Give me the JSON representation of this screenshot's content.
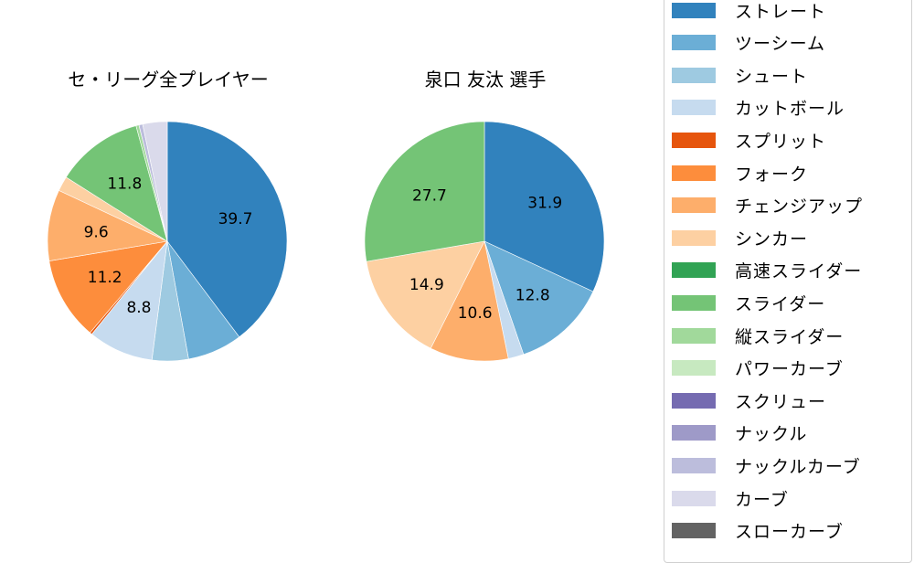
{
  "chart_data": [
    {
      "type": "pie",
      "title": "セ・リーグ全プレイヤー",
      "start_angle": 90,
      "direction": "clockwise",
      "slices": [
        {
          "label": "ストレート",
          "value": 39.7,
          "color": "#3182bd",
          "show_label": true
        },
        {
          "label": "ツーシーム",
          "value": 7.4,
          "color": "#6baed6",
          "show_label": false
        },
        {
          "label": "シュート",
          "value": 4.9,
          "color": "#9ecae1",
          "show_label": false
        },
        {
          "label": "カットボール",
          "value": 8.8,
          "color": "#c6dbef",
          "show_label": true
        },
        {
          "label": "スプリット",
          "value": 0.3,
          "color": "#e6550d",
          "show_label": false
        },
        {
          "label": "フォーク",
          "value": 11.2,
          "color": "#fd8d3c",
          "show_label": true
        },
        {
          "label": "チェンジアップ",
          "value": 9.6,
          "color": "#fdae6b",
          "show_label": true
        },
        {
          "label": "シンカー",
          "value": 2.0,
          "color": "#fdd0a2",
          "show_label": false
        },
        {
          "label": "スライダー",
          "value": 11.8,
          "color": "#74c476",
          "show_label": true
        },
        {
          "label": "縦スライダー",
          "value": 0.4,
          "color": "#a1d99b",
          "show_label": false
        },
        {
          "label": "ナックルカーブ",
          "value": 0.5,
          "color": "#bcbddc",
          "show_label": false
        },
        {
          "label": "カーブ",
          "value": 3.3,
          "color": "#dadaeb",
          "show_label": false
        }
      ]
    },
    {
      "type": "pie",
      "title": "泉口 友汰  選手",
      "start_angle": 90,
      "direction": "clockwise",
      "slices": [
        {
          "label": "ストレート",
          "value": 31.9,
          "color": "#3182bd",
          "show_label": true
        },
        {
          "label": "ツーシーム",
          "value": 12.8,
          "color": "#6baed6",
          "show_label": true
        },
        {
          "label": "カットボール",
          "value": 2.1,
          "color": "#c6dbef",
          "show_label": false
        },
        {
          "label": "チェンジアップ",
          "value": 10.6,
          "color": "#fdae6b",
          "show_label": true
        },
        {
          "label": "シンカー",
          "value": 14.9,
          "color": "#fdd0a2",
          "show_label": true
        },
        {
          "label": "スライダー",
          "value": 27.7,
          "color": "#74c476",
          "show_label": true
        }
      ]
    }
  ],
  "titles": {
    "left": "セ・リーグ全プレイヤー",
    "right": "泉口 友汰  選手"
  },
  "legend": {
    "items": [
      {
        "label": "ストレート",
        "color": "#3182bd"
      },
      {
        "label": "ツーシーム",
        "color": "#6baed6"
      },
      {
        "label": "シュート",
        "color": "#9ecae1"
      },
      {
        "label": "カットボール",
        "color": "#c6dbef"
      },
      {
        "label": "スプリット",
        "color": "#e6550d"
      },
      {
        "label": "フォーク",
        "color": "#fd8d3c"
      },
      {
        "label": "チェンジアップ",
        "color": "#fdae6b"
      },
      {
        "label": "シンカー",
        "color": "#fdd0a2"
      },
      {
        "label": "高速スライダー",
        "color": "#31a354"
      },
      {
        "label": "スライダー",
        "color": "#74c476"
      },
      {
        "label": "縦スライダー",
        "color": "#a1d99b"
      },
      {
        "label": "パワーカーブ",
        "color": "#c7e9c0"
      },
      {
        "label": "スクリュー",
        "color": "#756bb1"
      },
      {
        "label": "ナックル",
        "color": "#9e9ac8"
      },
      {
        "label": "ナックルカーブ",
        "color": "#bcbddc"
      },
      {
        "label": "カーブ",
        "color": "#dadaeb"
      },
      {
        "label": "スローカーブ",
        "color": "#636363"
      }
    ]
  }
}
